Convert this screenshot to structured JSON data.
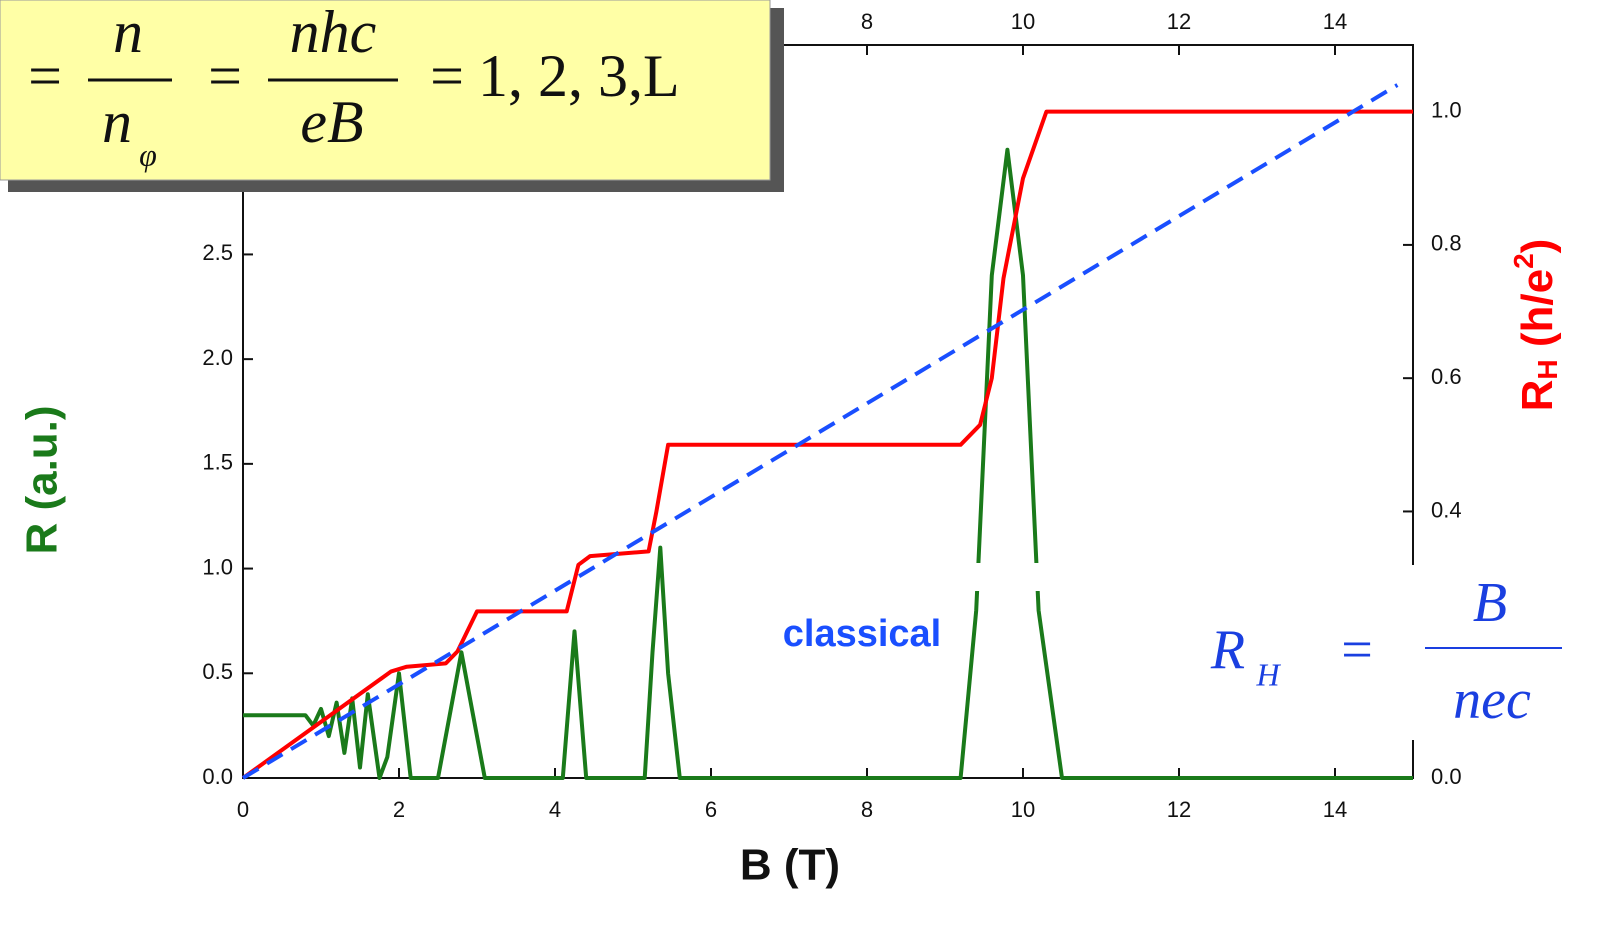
{
  "chart_data": {
    "type": "line",
    "x_label": "B (T)",
    "y_label": "R (a.u.)",
    "y2_label": [
      "R",
      "H",
      " (h/e",
      "2",
      ")"
    ],
    "xlim": [
      0,
      15
    ],
    "xticks": [
      0,
      2,
      4,
      6,
      8,
      10,
      12,
      14
    ],
    "ylim": [
      0,
      3.5
    ],
    "yticks": [
      {
        "value": 0,
        "label": "0.0"
      },
      0.5,
      {
        "value": 1,
        "label": "1.0"
      },
      1.5,
      {
        "value": 2,
        "label": "2.0"
      },
      2.5
    ],
    "y2lim": [
      0,
      1.1
    ],
    "y2ticks": [
      {
        "value": 0,
        "label": "0.0"
      },
      0.4,
      0.6,
      0.8,
      {
        "value": 1,
        "label": "1.0"
      }
    ],
    "series": [
      {
        "color": "#1a7a1a",
        "axis": "y",
        "x": [
          0,
          0.8,
          0.9,
          1.0,
          1.1,
          1.2,
          1.3,
          1.4,
          1.5,
          1.6,
          1.75,
          1.85,
          2.0,
          2.15,
          2.5,
          2.65,
          2.8,
          2.95,
          3.1,
          4.1,
          4.25,
          4.4,
          5.15,
          5.25,
          5.35,
          5.45,
          5.6,
          9.2,
          9.4,
          9.6,
          9.8,
          10.0,
          10.2,
          10.5,
          15
        ],
        "values": [
          0.3,
          0.3,
          0.25,
          0.33,
          0.2,
          0.36,
          0.12,
          0.38,
          0.05,
          0.4,
          0,
          0.1,
          0.5,
          0,
          0,
          0.3,
          0.6,
          0.3,
          0,
          0,
          0.7,
          0,
          0,
          0.6,
          1.1,
          0.5,
          0,
          0,
          0.8,
          2.4,
          3.0,
          2.4,
          0.8,
          0,
          0
        ]
      },
      {
        "color": "#ff0000",
        "axis": "y2",
        "x": [
          0,
          1.9,
          2.1,
          2.6,
          2.75,
          3.0,
          4.15,
          4.3,
          4.45,
          5.2,
          5.3,
          5.45,
          9.2,
          9.45,
          9.6,
          9.75,
          10.0,
          10.3,
          15
        ],
        "values": [
          0,
          0.16,
          0.167,
          0.172,
          0.19,
          0.25,
          0.25,
          0.32,
          0.333,
          0.34,
          0.4,
          0.5,
          0.5,
          0.53,
          0.6,
          0.75,
          0.9,
          1.0,
          1.0
        ]
      },
      {
        "name": "classical",
        "color": "#1a4fff",
        "axis": "y2",
        "dashed": true,
        "x": [
          0,
          14.8
        ],
        "values": [
          0,
          1.04
        ]
      }
    ],
    "filling_formula": [
      "=",
      "n",
      "n",
      "φ",
      "=",
      "nhc",
      "eB",
      "=",
      "1, 2, 3,L"
    ],
    "hall_formula": [
      "R",
      "H",
      "=",
      "B",
      "nec"
    ]
  }
}
